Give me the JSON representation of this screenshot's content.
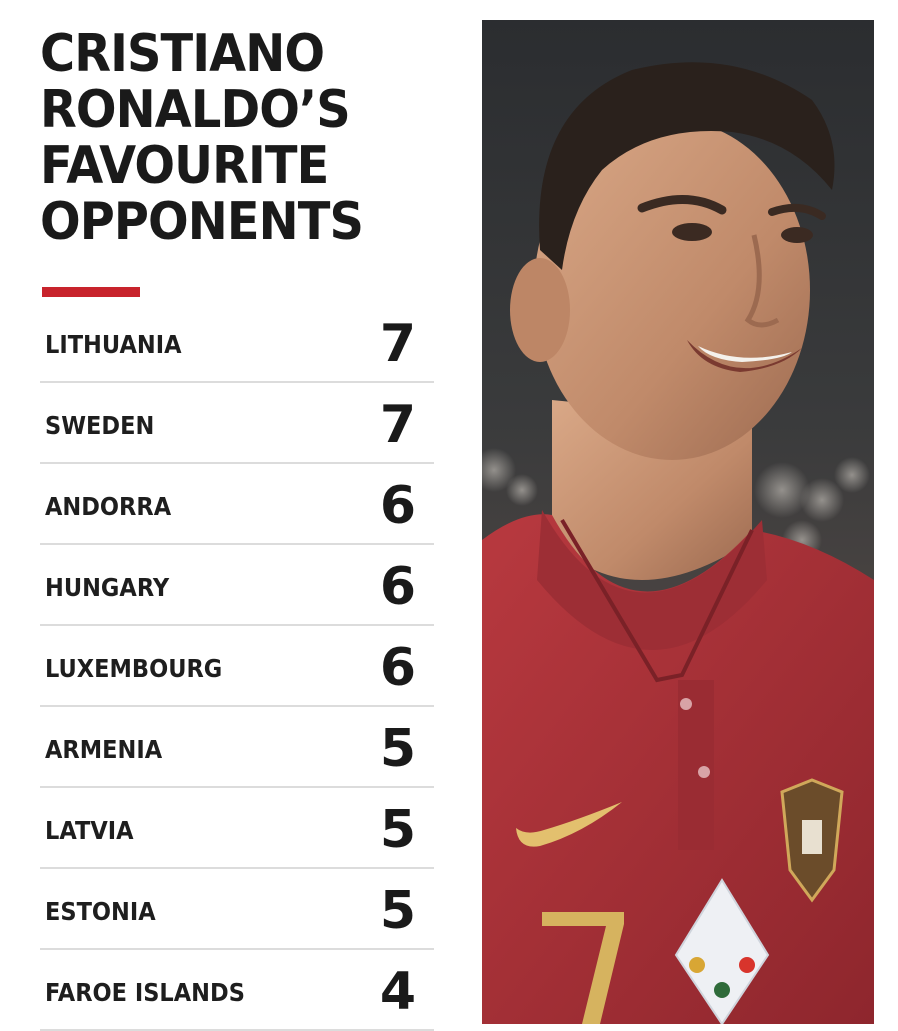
{
  "title": {
    "lines": [
      "CRISTIANO",
      "RONALDO’S",
      "FAVOURITE",
      "OPPONENTS"
    ]
  },
  "colors": {
    "accent": "#c8232c",
    "text": "#1a1a1a",
    "divider": "#dcdcdc",
    "shirt": "#a8313a"
  },
  "opponents": [
    {
      "country": "LITHUANIA",
      "goals": "7"
    },
    {
      "country": "SWEDEN",
      "goals": "7"
    },
    {
      "country": "ANDORRA",
      "goals": "6"
    },
    {
      "country": "HUNGARY",
      "goals": "6"
    },
    {
      "country": "LUXEMBOURG",
      "goals": "6"
    },
    {
      "country": "ARMENIA",
      "goals": "5"
    },
    {
      "country": "LATVIA",
      "goals": "5"
    },
    {
      "country": "ESTONIA",
      "goals": "5"
    },
    {
      "country": "FAROE ISLANDS",
      "goals": "4"
    }
  ]
}
